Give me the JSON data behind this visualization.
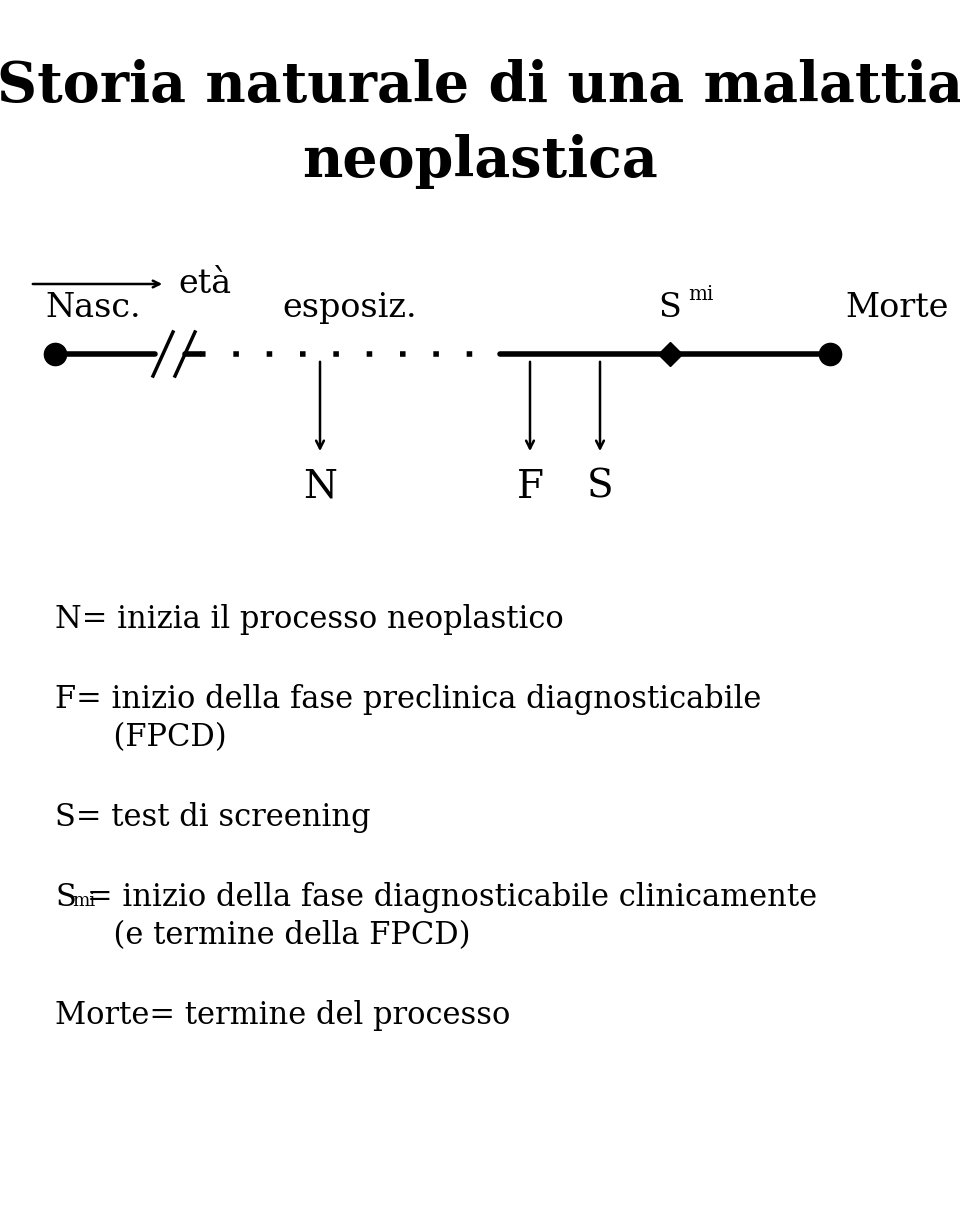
{
  "title_line1": "Storia naturale di una malattia",
  "title_line2": "neoplastica",
  "title_fontsize": 40,
  "bg_color": "#ffffff",
  "text_color": "#000000",
  "eta_label": "età",
  "nasc_label": "Nasc.",
  "esposiz_label": "esposiz.",
  "smi_label": "S",
  "smi_super": "mi",
  "morte_label": "Morte",
  "N_label": "N",
  "F_label": "F",
  "S_label": "S",
  "legend_N": "N= inizia il processo neoplastico",
  "legend_F1": "F= inizio della fase preclinica diagnosticabile",
  "legend_F2": "      (FPCD)",
  "legend_S": "S= test di screening",
  "legend_Smi1": "S",
  "legend_Smi1_super": "mi",
  "legend_Smi2": "= inizio della fase diagnosticabile clinicamente",
  "legend_Smi3": "      (e termine della FPCD)",
  "legend_Morte": "Morte= termine del processo",
  "label_fontsize": 22,
  "anno_fontsize": 22,
  "timeline_label_fontsize": 24
}
